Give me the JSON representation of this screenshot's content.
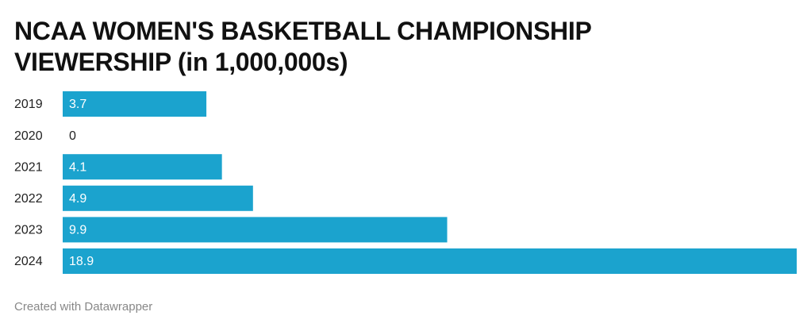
{
  "chart_data": {
    "type": "bar",
    "orientation": "horizontal",
    "title": "NCAA WOMEN'S BASKETBALL CHAMPIONSHIP VIEWERSHIP (in 1,000,000s)",
    "categories": [
      "2019",
      "2020",
      "2021",
      "2022",
      "2023",
      "2024"
    ],
    "values": [
      3.7,
      0,
      4.1,
      4.9,
      9.9,
      18.9
    ],
    "color": "#1ba3ce",
    "credit": "Created with Datawrapper"
  }
}
